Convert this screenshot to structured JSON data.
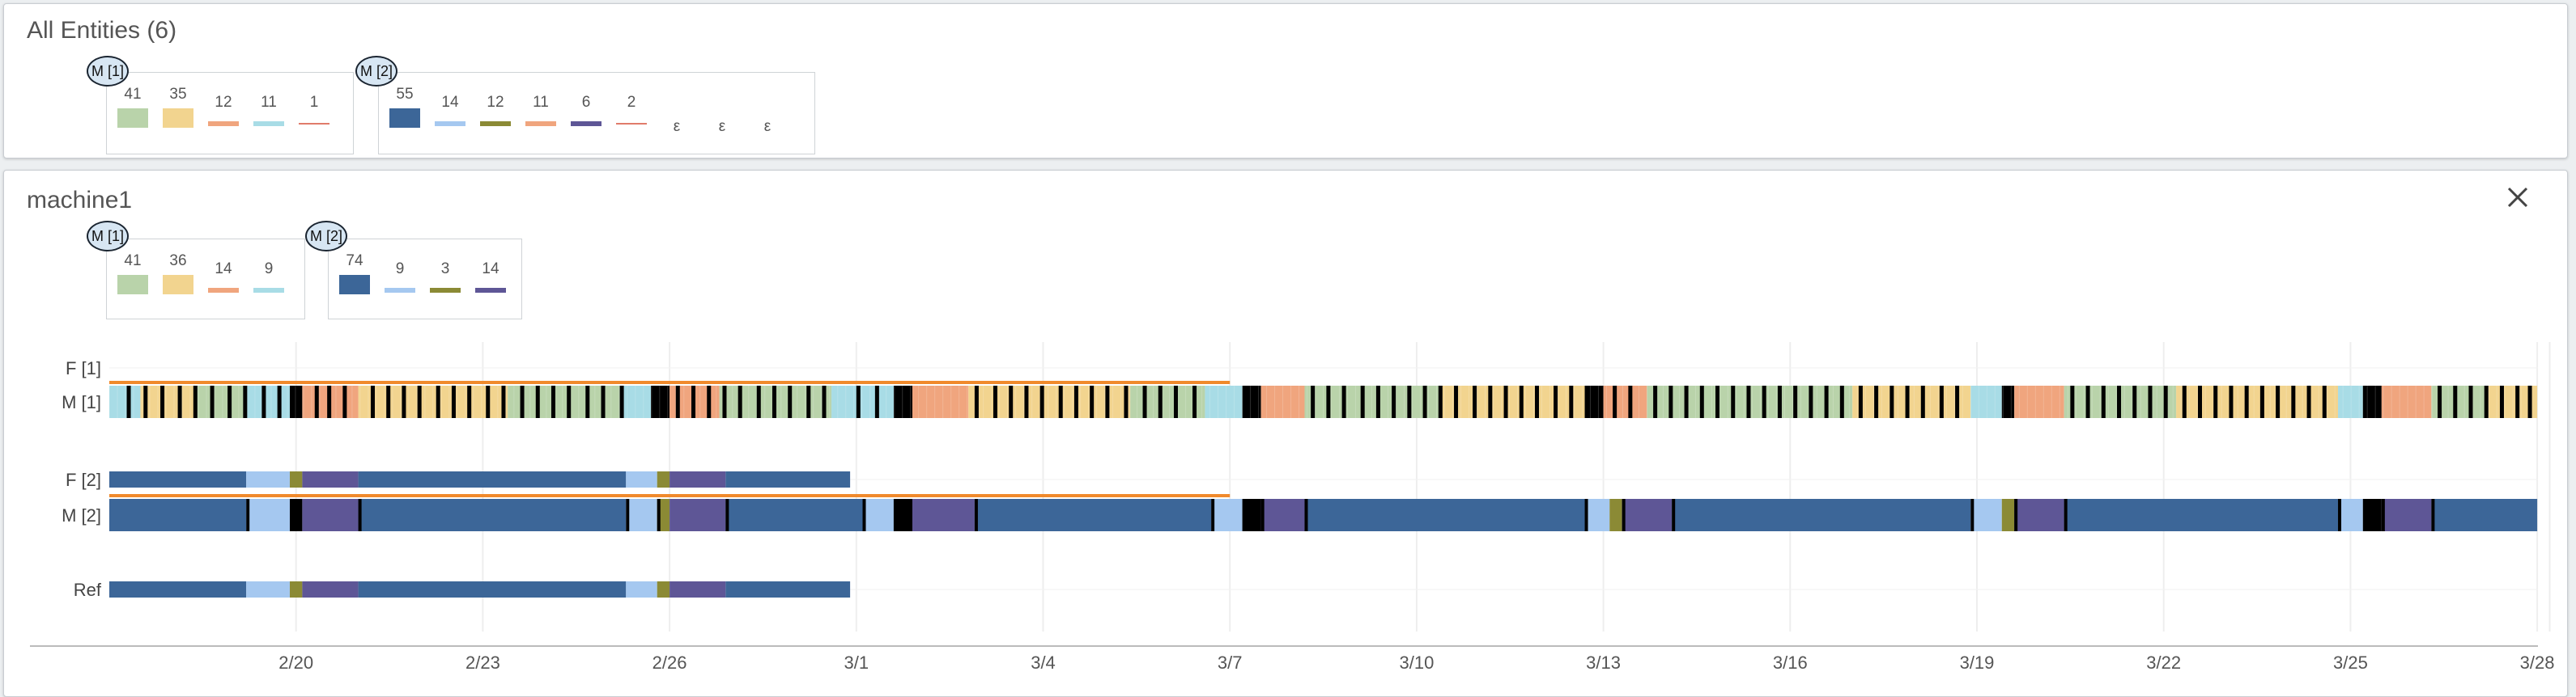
{
  "all_entities": {
    "title": "All Entities (6)",
    "groups": [
      {
        "badge": "M [1]",
        "items": [
          {
            "value": "41",
            "color": "#b9d3aa",
            "kind": "block"
          },
          {
            "value": "35",
            "color": "#f2d48f",
            "kind": "block"
          },
          {
            "value": "12",
            "color": "#f0a57e",
            "kind": "line"
          },
          {
            "value": "11",
            "color": "#a8dce6",
            "kind": "line"
          },
          {
            "value": "1",
            "color": "#e07b6a",
            "kind": "thin"
          }
        ]
      },
      {
        "badge": "M [2]",
        "items": [
          {
            "value": "55",
            "color": "#3c6698",
            "kind": "block"
          },
          {
            "value": "14",
            "color": "#a5c8f0",
            "kind": "line"
          },
          {
            "value": "12",
            "color": "#8b8a35",
            "kind": "line"
          },
          {
            "value": "11",
            "color": "#f0a57e",
            "kind": "line"
          },
          {
            "value": "6",
            "color": "#5e5696",
            "kind": "line"
          },
          {
            "value": "2",
            "color": "#e07b6a",
            "kind": "thin"
          },
          {
            "value": "ε",
            "color": "",
            "kind": "none"
          },
          {
            "value": "ε",
            "color": "",
            "kind": "none"
          },
          {
            "value": "ε",
            "color": "",
            "kind": "none"
          }
        ]
      }
    ]
  },
  "machine_panel": {
    "title": "machine1",
    "close_icon": "close-icon",
    "groups": [
      {
        "badge": "M [1]",
        "items": [
          {
            "value": "41",
            "color": "#b9d3aa",
            "kind": "block"
          },
          {
            "value": "36",
            "color": "#f2d48f",
            "kind": "block"
          },
          {
            "value": "14",
            "color": "#f0a57e",
            "kind": "line"
          },
          {
            "value": "9",
            "color": "#a8dce6",
            "kind": "line"
          }
        ]
      },
      {
        "badge": "M [2]",
        "items": [
          {
            "value": "74",
            "color": "#3c6698",
            "kind": "block"
          },
          {
            "value": "9",
            "color": "#a5c8f0",
            "kind": "line"
          },
          {
            "value": "3",
            "color": "#8b8a35",
            "kind": "line"
          },
          {
            "value": "14",
            "color": "#5e5696",
            "kind": "line"
          }
        ]
      }
    ]
  },
  "chart_data": {
    "type": "timeline",
    "rows": [
      "F [1]",
      "M [1]",
      "F [2]",
      "M [2]",
      "Ref"
    ],
    "x_ticks": [
      "2/20",
      "2/23",
      "2/26",
      "3/1",
      "3/4",
      "3/7",
      "3/10",
      "3/13",
      "3/16",
      "3/19",
      "3/22",
      "3/25",
      "3/28"
    ],
    "x_range": [
      "2/17",
      "3/28"
    ],
    "colors": {
      "green": "#b9d3aa",
      "yellow": "#f2d48f",
      "orange": "#f0a57e",
      "cyan": "#a8dce6",
      "dark_blue": "#3c6698",
      "light_blue": "#a5c8f0",
      "olive": "#8b8a35",
      "purple": "#5e5696",
      "black": "#000000",
      "accent": "#f08a2c"
    },
    "f2_segments": [
      [
        "dark_blue",
        0,
        2.2
      ],
      [
        "light_blue",
        2.2,
        2.9
      ],
      [
        "olive",
        2.9,
        3.1
      ],
      [
        "purple",
        3.1,
        4.0
      ],
      [
        "dark_blue",
        4.0,
        8.3
      ],
      [
        "light_blue",
        8.3,
        8.8
      ],
      [
        "olive",
        8.8,
        9.0
      ],
      [
        "purple",
        9.0,
        9.9
      ],
      [
        "dark_blue",
        9.9,
        11.9
      ]
    ],
    "ref_segments": [
      [
        "dark_blue",
        0,
        2.2
      ],
      [
        "light_blue",
        2.2,
        2.9
      ],
      [
        "olive",
        2.9,
        3.1
      ],
      [
        "purple",
        3.1,
        4.0
      ],
      [
        "dark_blue",
        4.0,
        8.3
      ],
      [
        "light_blue",
        8.3,
        8.8
      ],
      [
        "olive",
        8.8,
        9.0
      ],
      [
        "purple",
        9.0,
        9.9
      ],
      [
        "dark_blue",
        9.9,
        11.9
      ]
    ],
    "m2_segments": [
      [
        "dark_blue",
        0,
        2.2
      ],
      [
        "light_blue",
        2.2,
        2.9
      ],
      [
        "black",
        2.9,
        3.1
      ],
      [
        "purple",
        3.1,
        4.0
      ],
      [
        "dark_blue",
        4.0,
        8.3
      ],
      [
        "light_blue",
        8.3,
        8.8
      ],
      [
        "olive",
        8.8,
        9.0
      ],
      [
        "purple",
        9.0,
        9.9
      ],
      [
        "dark_blue",
        9.9,
        12.1
      ],
      [
        "light_blue",
        12.1,
        12.6
      ],
      [
        "black",
        12.6,
        12.9
      ],
      [
        "purple",
        12.9,
        13.9
      ],
      [
        "dark_blue",
        13.9,
        17.7
      ],
      [
        "light_blue",
        17.7,
        18.2
      ],
      [
        "black",
        18.2,
        18.5
      ],
      [
        "purple",
        18.5,
        19.2
      ],
      [
        "dark_blue",
        19.2,
        23.7
      ],
      [
        "light_blue",
        23.7,
        24.1
      ],
      [
        "olive",
        24.1,
        24.3
      ],
      [
        "purple",
        24.3,
        25.1
      ],
      [
        "dark_blue",
        25.1,
        29.9
      ],
      [
        "light_blue",
        29.9,
        30.4
      ],
      [
        "olive",
        30.4,
        30.6
      ],
      [
        "purple",
        30.6,
        31.4
      ],
      [
        "dark_blue",
        31.4,
        35.8
      ],
      [
        "light_blue",
        35.8,
        36.2
      ],
      [
        "black",
        36.2,
        36.5
      ],
      [
        "purple",
        36.5,
        37.3
      ],
      [
        "dark_blue",
        37.3,
        39.0
      ]
    ],
    "m1_segments": [
      [
        "cyan",
        0,
        0.5
      ],
      [
        "yellow",
        0.5,
        1.4
      ],
      [
        "green",
        1.4,
        2.2
      ],
      [
        "cyan",
        2.2,
        2.9
      ],
      [
        "black",
        2.9,
        3.1
      ],
      [
        "orange",
        3.1,
        4.0
      ],
      [
        "yellow",
        4.0,
        6.4
      ],
      [
        "green",
        6.4,
        8.2
      ],
      [
        "cyan",
        8.2,
        8.7
      ],
      [
        "black",
        8.7,
        9.0
      ],
      [
        "orange",
        9.0,
        9.8
      ],
      [
        "green",
        9.8,
        11.6
      ],
      [
        "cyan",
        11.6,
        12.6
      ],
      [
        "black",
        12.6,
        12.9
      ],
      [
        "orange",
        12.9,
        13.8
      ],
      [
        "yellow",
        13.8,
        16.4
      ],
      [
        "green",
        16.4,
        17.6
      ],
      [
        "cyan",
        17.6,
        18.2
      ],
      [
        "black",
        18.2,
        18.5
      ],
      [
        "orange",
        18.5,
        19.2
      ],
      [
        "green",
        19.2,
        21.4
      ],
      [
        "yellow",
        21.4,
        23.7
      ],
      [
        "black",
        23.7,
        24.0
      ],
      [
        "orange",
        24.0,
        24.7
      ],
      [
        "green",
        24.7,
        28.0
      ],
      [
        "yellow",
        28.0,
        29.9
      ],
      [
        "cyan",
        29.9,
        30.4
      ],
      [
        "black",
        30.4,
        30.6
      ],
      [
        "orange",
        30.6,
        31.4
      ],
      [
        "green",
        31.4,
        33.2
      ],
      [
        "yellow",
        33.2,
        35.8
      ],
      [
        "cyan",
        35.8,
        36.2
      ],
      [
        "black",
        36.2,
        36.5
      ],
      [
        "orange",
        36.5,
        37.3
      ],
      [
        "green",
        37.3,
        38.2
      ],
      [
        "yellow",
        38.2,
        39.0
      ]
    ],
    "accent_line_end": 18.0
  }
}
